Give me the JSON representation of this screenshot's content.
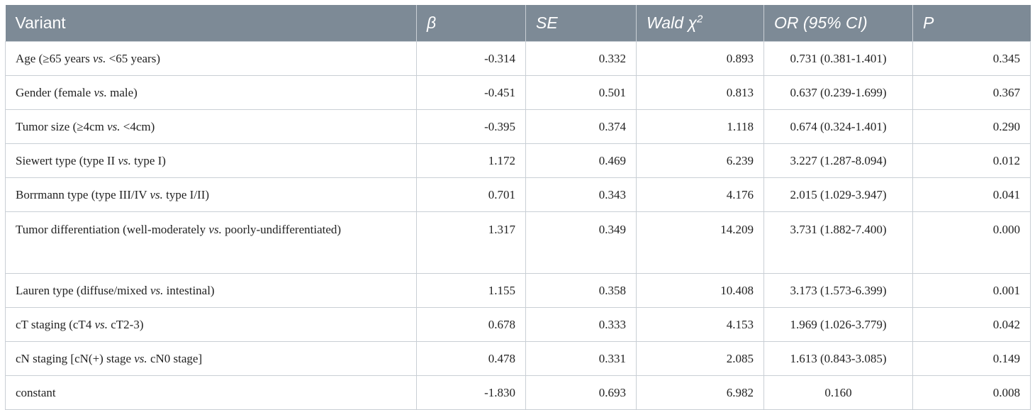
{
  "table": {
    "headers": {
      "variant": "Variant",
      "beta": "β",
      "se": "SE",
      "wald": "Wald χ",
      "wald_sup": "2",
      "or": "OR (95% CI)",
      "p": "P"
    },
    "rows": [
      {
        "pre": "Age (≥65 years ",
        "vs": "vs.",
        "post": " <65 years)",
        "beta": "-0.314",
        "se": "0.332",
        "wald": "0.893",
        "or": "0.731 (0.381-1.401)",
        "p": "0.345"
      },
      {
        "pre": "Gender (female ",
        "vs": "vs.",
        "post": " male)",
        "beta": "-0.451",
        "se": "0.501",
        "wald": "0.813",
        "or": "0.637 (0.239-1.699)",
        "p": "0.367"
      },
      {
        "pre": "Tumor size (≥4cm ",
        "vs": "vs.",
        "post": " <4cm)",
        "beta": "-0.395",
        "se": "0.374",
        "wald": "1.118",
        "or": "0.674 (0.324-1.401)",
        "p": "0.290"
      },
      {
        "pre": "Siewert type (type II ",
        "vs": "vs.",
        "post": " type I)",
        "beta": "1.172",
        "se": "0.469",
        "wald": "6.239",
        "or": "3.227 (1.287-8.094)",
        "p": "0.012"
      },
      {
        "pre": "Borrmann type (type III/IV ",
        "vs": "vs.",
        "post": " type I/II)",
        "beta": "0.701",
        "se": "0.343",
        "wald": "4.176",
        "or": "2.015 (1.029-3.947)",
        "p": "0.041"
      },
      {
        "pre": "Tumor differentiation (well-moderately ",
        "vs": "vs.",
        "post": " poorly-undifferentiated)",
        "beta": "1.317",
        "se": "0.349",
        "wald": "14.209",
        "or": "3.731 (1.882-7.400)",
        "p": "0.000"
      },
      {
        "pre": "Lauren type (diffuse/mixed ",
        "vs": "vs.",
        "post": " intestinal)",
        "beta": "1.155",
        "se": "0.358",
        "wald": "10.408",
        "or": "3.173 (1.573-6.399)",
        "p": "0.001"
      },
      {
        "pre": "cT staging (cT4 ",
        "vs": "vs.",
        "post": " cT2-3)",
        "beta": "0.678",
        "se": "0.333",
        "wald": "4.153",
        "or": "1.969 (1.026-3.779)",
        "p": "0.042"
      },
      {
        "pre": "cN staging [cN(+) stage ",
        "vs": "vs.",
        "post": " cN0 stage]",
        "beta": "0.478",
        "se": "0.331",
        "wald": "2.085",
        "or": "1.613 (0.843-3.085)",
        "p": "0.149"
      },
      {
        "pre": "constant",
        "vs": "",
        "post": "",
        "beta": "-1.830",
        "se": "0.693",
        "wald": "6.982",
        "or": "0.160",
        "p": "0.008"
      }
    ]
  }
}
